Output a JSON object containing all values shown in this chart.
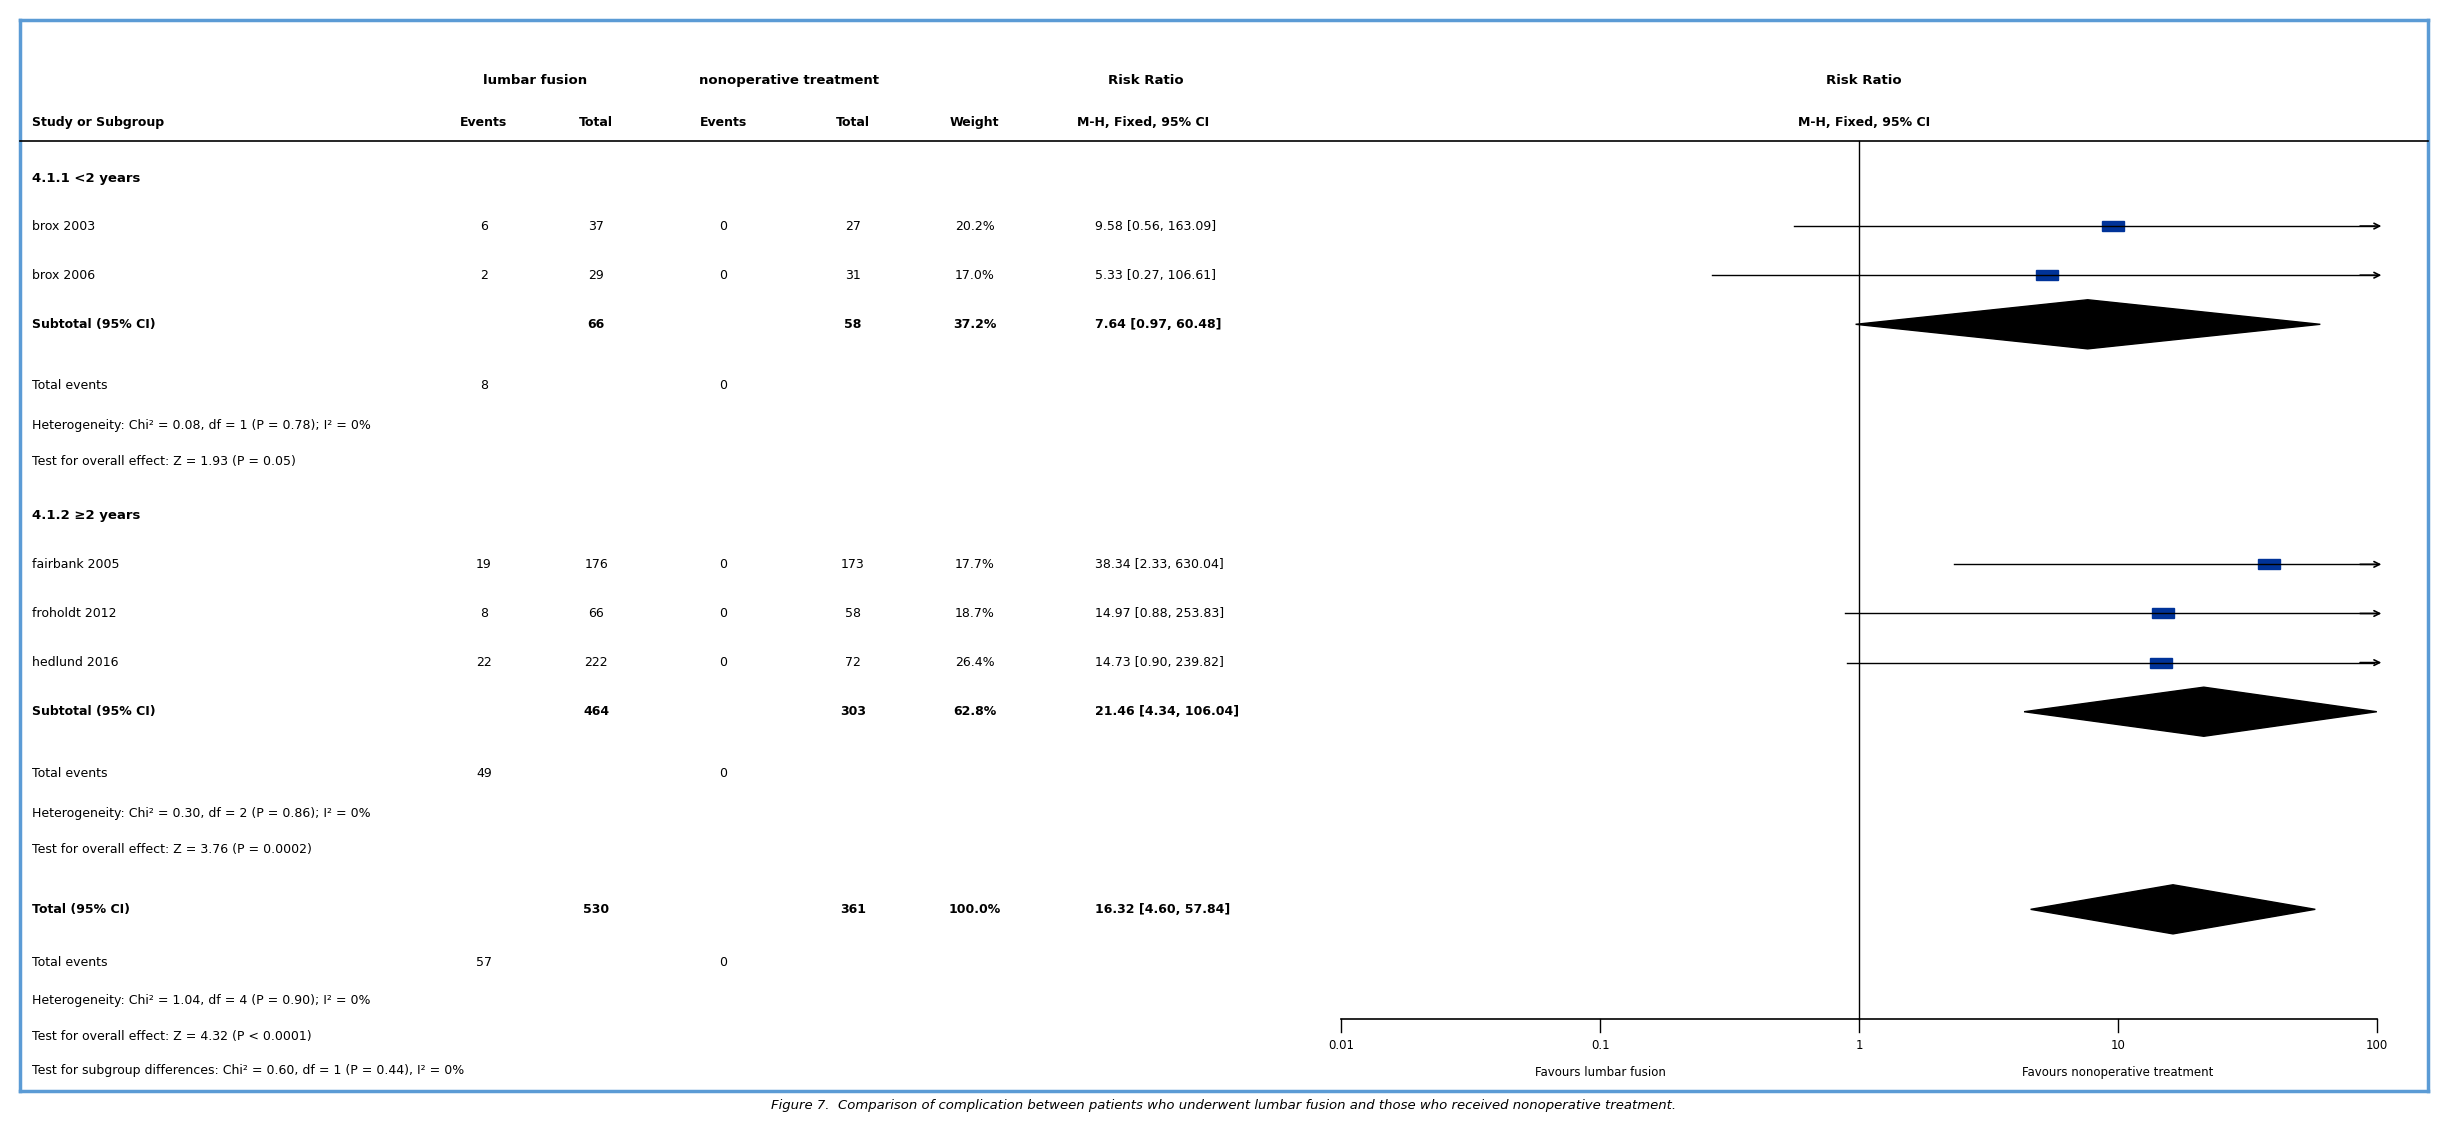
{
  "title": "Figure 7.",
  "title_text": "Comparison of complication between patients who underwent lumbar fusion and those who received nonoperative treatment.",
  "background_color": "#ffffff",
  "border_color": "#5b9bd5",
  "col_headers": {
    "lumbar_fusion": "lumbar fusion",
    "nonop_treatment": "nonoperative treatment",
    "risk_ratio": "Risk Ratio",
    "risk_ratio2": "Risk Ratio"
  },
  "col_subheaders": {
    "study": "Study or Subgroup",
    "lf_events": "Events",
    "lf_total": "Total",
    "no_events": "Events",
    "no_total": "Total",
    "weight": "Weight",
    "mh": "M-H, Fixed, 95% CI",
    "mh2": "M-H, Fixed, 95% CI"
  },
  "subgroup1_header": "4.1.1 <2 years",
  "subgroup2_header": "4.1.2 ≥2 years",
  "studies": [
    {
      "name": "brox 2003",
      "lf_events": 6,
      "lf_total": 37,
      "no_events": 0,
      "no_total": 27,
      "weight": "20.2%",
      "ci_text": "9.58 [0.56, 163.09]",
      "rr": 9.58,
      "lo": 0.56,
      "hi": 163.09,
      "group": 1,
      "is_study": true
    },
    {
      "name": "brox 2006",
      "lf_events": 2,
      "lf_total": 29,
      "no_events": 0,
      "no_total": 31,
      "weight": "17.0%",
      "ci_text": "5.33 [0.27, 106.61]",
      "rr": 5.33,
      "lo": 0.27,
      "hi": 106.61,
      "group": 1,
      "is_study": true
    },
    {
      "name": "Subtotal (95% CI)",
      "lf_total": 66,
      "no_total": 58,
      "weight": "37.2%",
      "ci_text": "7.64 [0.97, 60.48]",
      "rr": 7.64,
      "lo": 0.97,
      "hi": 60.48,
      "group": 1,
      "is_study": false,
      "is_subtotal": true
    },
    {
      "name": "fairbank 2005",
      "lf_events": 19,
      "lf_total": 176,
      "no_events": 0,
      "no_total": 173,
      "weight": "17.7%",
      "ci_text": "38.34 [2.33, 630.04]",
      "rr": 38.34,
      "lo": 2.33,
      "hi": 630.04,
      "group": 2,
      "is_study": true
    },
    {
      "name": "froholdt 2012",
      "lf_events": 8,
      "lf_total": 66,
      "no_events": 0,
      "no_total": 58,
      "weight": "18.7%",
      "ci_text": "14.97 [0.88, 253.83]",
      "rr": 14.97,
      "lo": 0.88,
      "hi": 253.83,
      "group": 2,
      "is_study": true
    },
    {
      "name": "hedlund 2016",
      "lf_events": 22,
      "lf_total": 222,
      "no_events": 0,
      "no_total": 72,
      "weight": "26.4%",
      "ci_text": "14.73 [0.90, 239.82]",
      "rr": 14.73,
      "lo": 0.9,
      "hi": 239.82,
      "group": 2,
      "is_study": true
    },
    {
      "name": "Subtotal (95% CI)",
      "lf_total": 464,
      "no_total": 303,
      "weight": "62.8%",
      "ci_text": "21.46 [4.34, 106.04]",
      "rr": 21.46,
      "lo": 4.34,
      "hi": 106.04,
      "group": 2,
      "is_study": false,
      "is_subtotal": true
    },
    {
      "name": "Total (95% CI)",
      "lf_total": 530,
      "no_total": 361,
      "weight": "100.0%",
      "ci_text": "16.32 [4.60, 57.84]",
      "rr": 16.32,
      "lo": 4.6,
      "hi": 57.84,
      "group": 0,
      "is_study": false,
      "is_total": true
    }
  ],
  "heterogeneity1": "Heterogeneity: Chi² = 0.08, df = 1 (P = 0.78); I² = 0%",
  "overall1": "Test for overall effect: Z = 1.93 (P = 0.05)",
  "total_events1_lf": 8,
  "total_events1_no": 0,
  "heterogeneity2": "Heterogeneity: Chi² = 0.30, df = 2 (P = 0.86); I² = 0%",
  "overall2": "Test for overall effect: Z = 3.76 (P = 0.0002)",
  "total_events2_lf": 49,
  "total_events2_no": 0,
  "total_events_lf": 57,
  "total_events_no": 0,
  "heterogeneity_total": "Heterogeneity: Chi² = 1.04, df = 4 (P = 0.90); I² = 0%",
  "overall_total": "Test for overall effect: Z = 4.32 (P < 0.0001)",
  "subgroup_diff": "Test for subgroup differences: Chi² = 0.60, df = 1 (P = 0.44), I² = 0%",
  "axis_ticks": [
    0.01,
    0.1,
    1,
    10,
    100
  ],
  "axis_labels": [
    "0.01",
    "0.1",
    "1",
    "10",
    "100"
  ],
  "favour_left": "Favours lumbar fusion",
  "favour_right": "Favours nonoperative treatment",
  "study_color": "#000000",
  "diamond_color": "#000000",
  "square_color": "#003399",
  "line_color": "#000000"
}
